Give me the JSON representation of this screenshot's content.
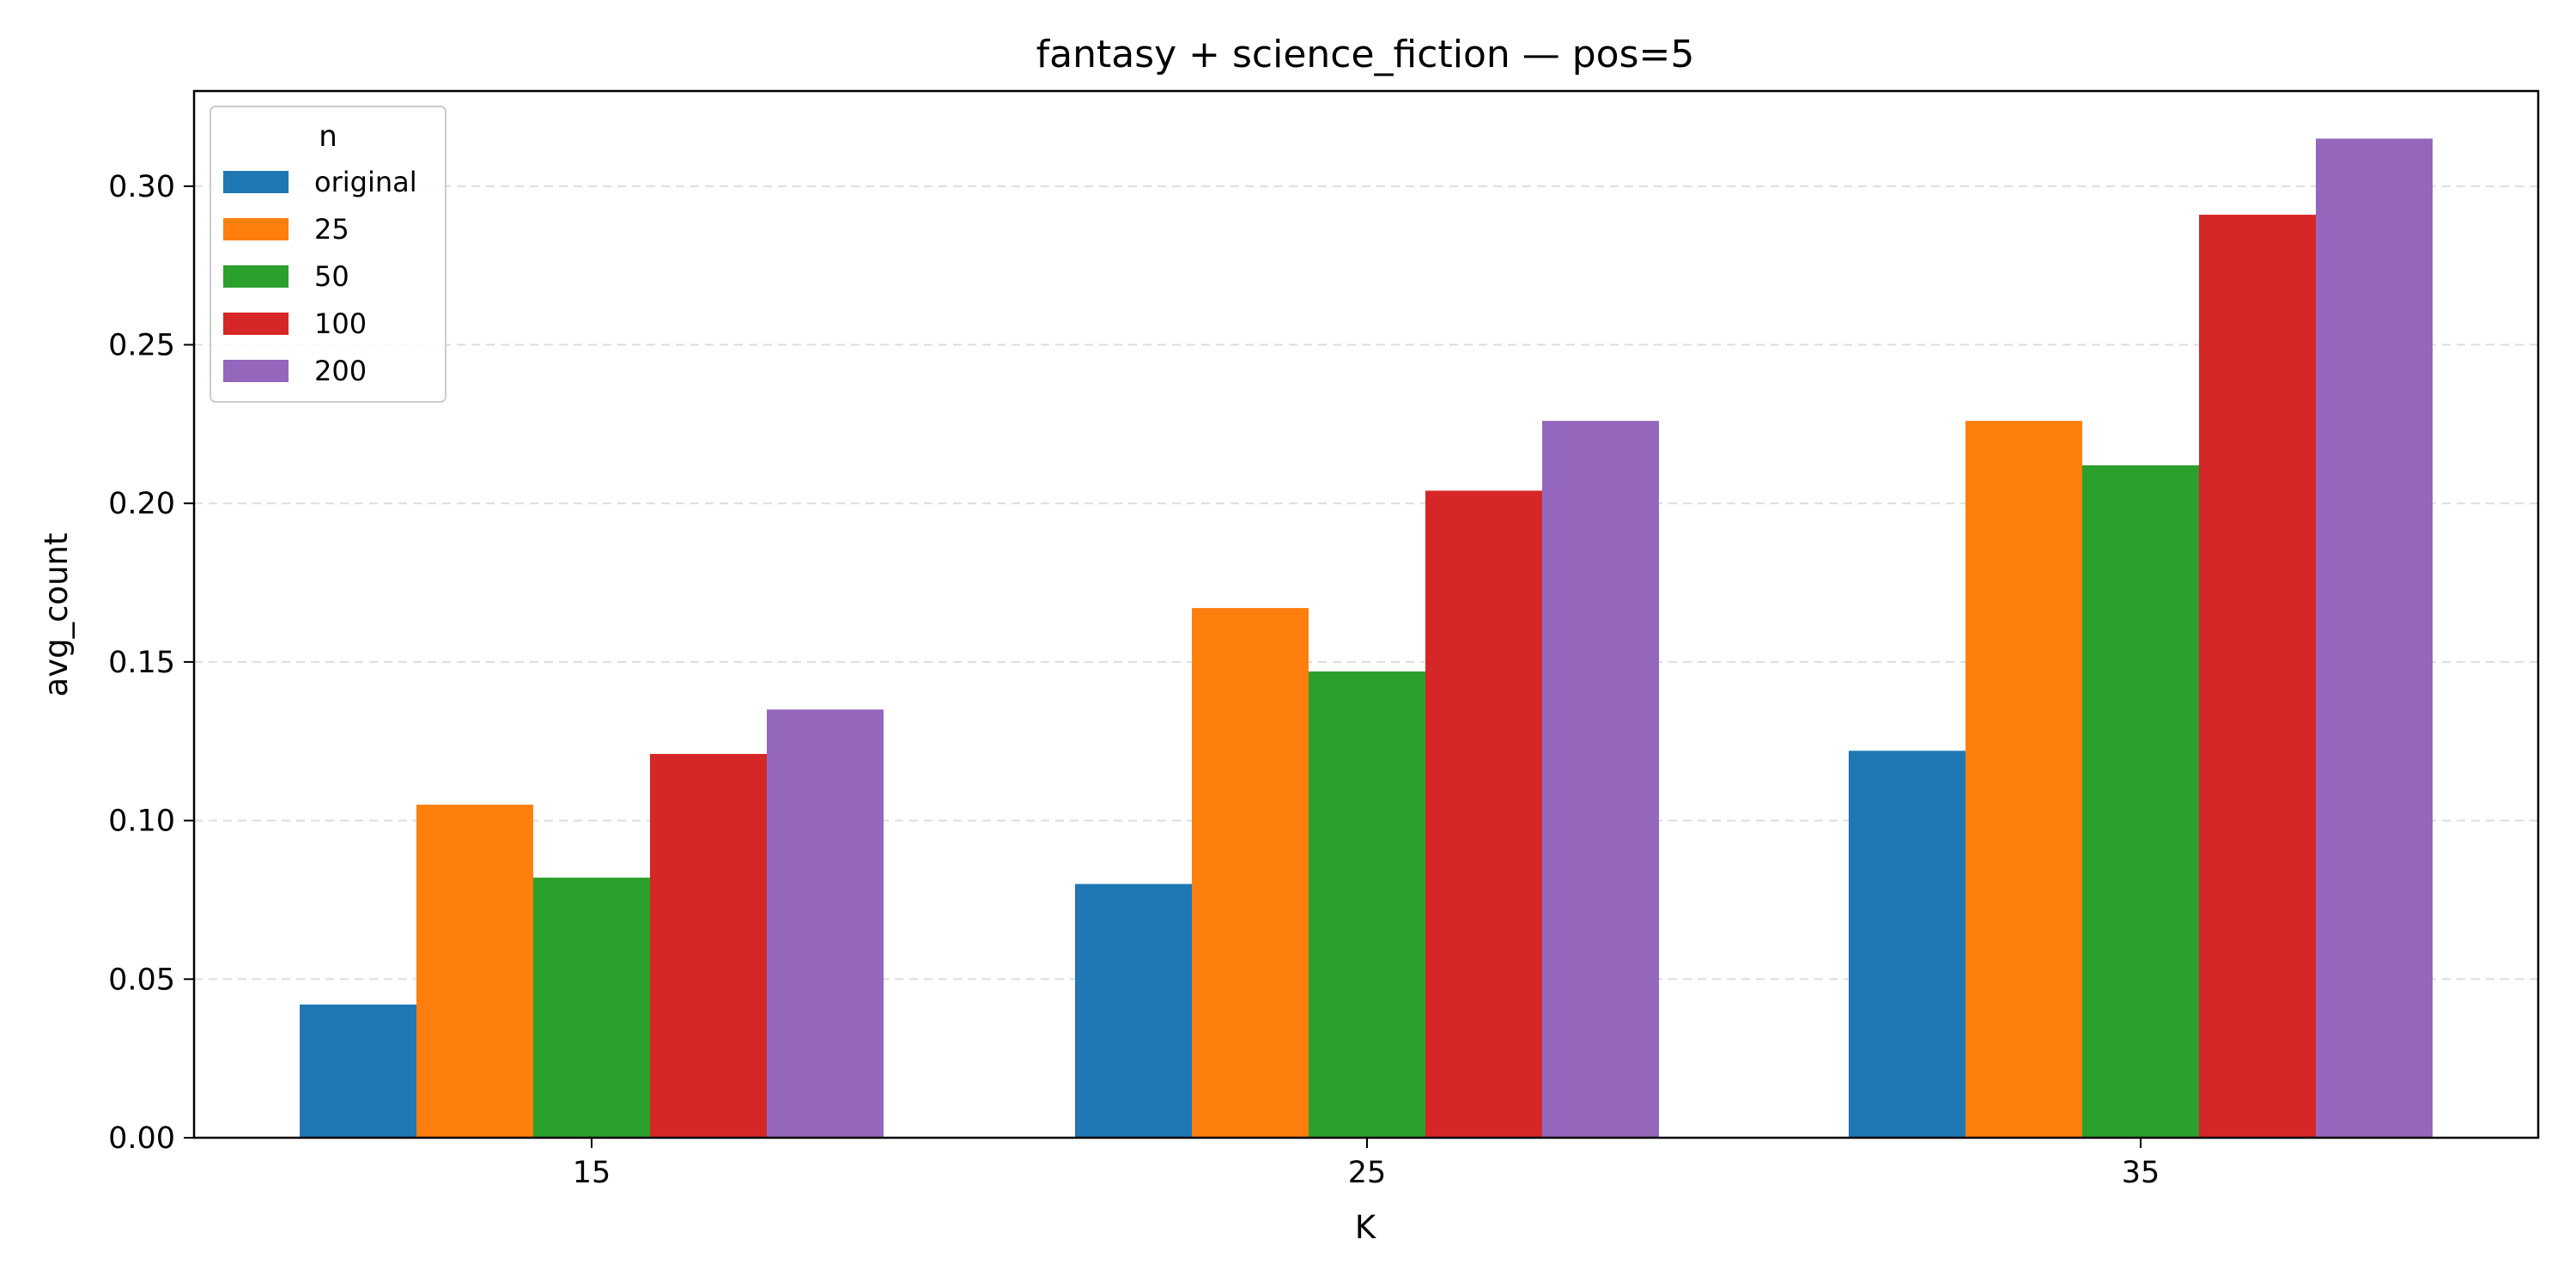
{
  "chart_data": {
    "type": "bar",
    "title": "fantasy + science_fiction — pos=5",
    "xlabel": "K",
    "ylabel": "avg_count",
    "categories": [
      "15",
      "25",
      "35"
    ],
    "ylim": [
      0,
      0.33
    ],
    "yticks": [
      0.0,
      0.05,
      0.1,
      0.15,
      0.2,
      0.25,
      0.3
    ],
    "ytick_labels": [
      "0.00",
      "0.05",
      "0.10",
      "0.15",
      "0.20",
      "0.25",
      "0.30"
    ],
    "grid": "y-dashed",
    "legend": {
      "title": "n",
      "placement": "top-left"
    },
    "series": [
      {
        "name": "original",
        "color": "#1f77b4",
        "values": [
          0.042,
          0.08,
          0.122
        ]
      },
      {
        "name": "25",
        "color": "#ff7f0e",
        "values": [
          0.105,
          0.167,
          0.226
        ]
      },
      {
        "name": "50",
        "color": "#2ca02c",
        "values": [
          0.082,
          0.147,
          0.212
        ]
      },
      {
        "name": "100",
        "color": "#d62728",
        "values": [
          0.121,
          0.204,
          0.291
        ]
      },
      {
        "name": "200",
        "color": "#9467bd",
        "values": [
          0.135,
          0.226,
          0.315
        ]
      }
    ]
  }
}
